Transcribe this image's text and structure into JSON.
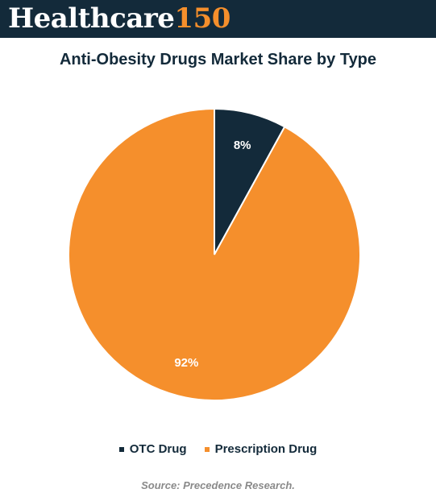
{
  "brand": {
    "word": "Healthcare",
    "number": "150",
    "colors": {
      "background": "#132a3a",
      "word": "#ffffff",
      "number": "#f58f2c"
    }
  },
  "chart_data": {
    "type": "pie",
    "title": "Anti-Obesity Drugs Market Share by Type",
    "slices": [
      {
        "name": "OTC Drug",
        "value": 8,
        "label": "8%",
        "color": "#132a3a"
      },
      {
        "name": "Prescription Drug",
        "value": 92,
        "label": "92%",
        "color": "#f58f2c"
      }
    ],
    "legend_position": "bottom-center",
    "start_angle_deg": 0,
    "direction": "clockwise"
  },
  "source": "Source: Precedence Research."
}
